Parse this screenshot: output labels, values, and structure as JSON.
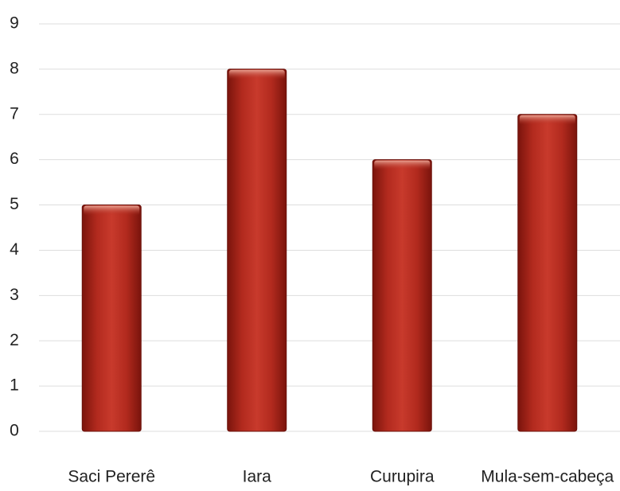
{
  "chart_data": {
    "type": "bar",
    "categories": [
      "Saci Pererê",
      "Iara",
      "Curupira",
      "Mula-sem-cabeça"
    ],
    "values": [
      5,
      8,
      6,
      7
    ],
    "color": "#b8281c",
    "ylim": [
      0,
      9
    ],
    "yticks": [
      0,
      1,
      2,
      3,
      4,
      5,
      6,
      7,
      8,
      9
    ],
    "grid": true
  }
}
